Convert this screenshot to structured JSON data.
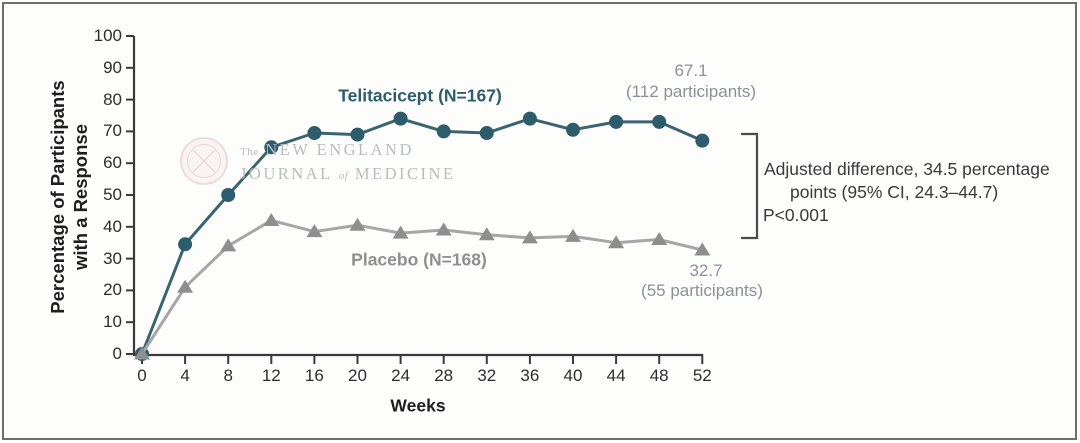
{
  "watermark": {
    "the": "The",
    "line1": "NEW ENGLAND",
    "journal": "JOURNAL",
    "of": "of",
    "medicine": "MEDICINE"
  },
  "chart_data": {
    "type": "line",
    "xlabel": "Weeks",
    "ylabel_line1": "Percentage of Participants",
    "ylabel_line2": "with a Response",
    "xlim": [
      0,
      52
    ],
    "ylim": [
      0,
      100
    ],
    "grid": false,
    "x": [
      0,
      4,
      8,
      12,
      16,
      20,
      24,
      28,
      32,
      36,
      40,
      44,
      48,
      52
    ],
    "x_tick_labels": [
      "0",
      "4",
      "8",
      "12",
      "16",
      "20",
      "24",
      "28",
      "32",
      "36",
      "40",
      "44",
      "48",
      "52"
    ],
    "y_ticks": [
      0,
      10,
      20,
      30,
      40,
      50,
      60,
      70,
      80,
      90,
      100
    ],
    "y_tick_labels": [
      "0",
      "10",
      "20",
      "30",
      "40",
      "50",
      "60",
      "70",
      "80",
      "90",
      "100"
    ],
    "series": [
      {
        "name": "Telitacicept",
        "label": "Telitacicept (N=167)",
        "marker": "circle",
        "marker_color": "#2d5c6c",
        "line_color": "#3a6472",
        "values": [
          0,
          34.5,
          50,
          65,
          69.5,
          69,
          74,
          70,
          69.5,
          74,
          70.5,
          73,
          73,
          67.1
        ],
        "final_value_label": "67.1",
        "final_participants_label": "(112 participants)"
      },
      {
        "name": "Placebo",
        "label": "Placebo (N=168)",
        "marker": "triangle",
        "marker_color": "#8e8e8e",
        "line_color": "#a6a6a6",
        "values": [
          0,
          21,
          34,
          42,
          38.5,
          40.5,
          38,
          39,
          37.5,
          36.5,
          37,
          35,
          36,
          32.7
        ],
        "final_value_label": "32.7",
        "final_participants_label": "(55 participants)"
      }
    ],
    "annotation": {
      "line1": "Adjusted difference, 34.5 percentage",
      "line2": "points (95% CI, 24.3–44.7)",
      "line3": "P<0.001"
    }
  }
}
